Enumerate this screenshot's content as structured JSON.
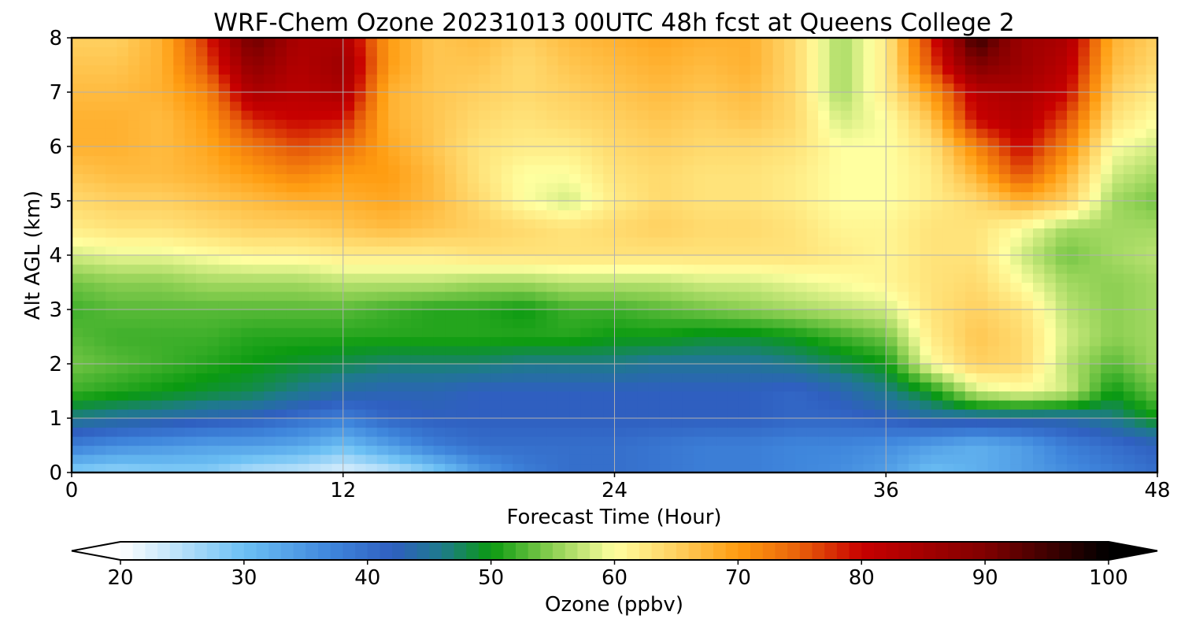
{
  "chart_data": {
    "type": "heatmap",
    "title": "WRF-Chem Ozone  20231013 00UTC 48h fcst at Queens College 2",
    "xlabel": "Forecast Time (Hour)",
    "ylabel": "Alt AGL (km)",
    "xlim": [
      0,
      48
    ],
    "ylim": [
      0,
      8
    ],
    "x_ticks": [
      0,
      12,
      24,
      36,
      48
    ],
    "y_ticks": [
      0,
      1,
      2,
      3,
      4,
      5,
      6,
      7,
      8
    ],
    "grid": true,
    "x": [
      0,
      2,
      4,
      6,
      8,
      10,
      12,
      14,
      16,
      18,
      20,
      22,
      24,
      26,
      28,
      30,
      32,
      34,
      36,
      38,
      40,
      42,
      44,
      46,
      48
    ],
    "y": [
      0,
      0.5,
      1,
      1.5,
      2,
      2.5,
      3,
      3.5,
      4,
      4.5,
      5,
      5.5,
      6,
      6.5,
      7,
      7.5,
      8
    ],
    "z": [
      [
        28,
        27,
        28,
        28,
        25,
        24,
        22,
        24,
        28,
        34,
        38,
        40,
        40,
        39,
        38,
        38,
        37,
        36,
        34,
        30,
        32,
        34,
        36,
        38,
        40
      ],
      [
        38,
        36,
        35,
        34,
        34,
        33,
        30,
        34,
        38,
        40,
        40,
        40,
        40,
        39,
        38,
        38,
        37,
        37,
        36,
        34,
        32,
        34,
        38,
        40,
        42
      ],
      [
        46,
        45,
        44,
        43,
        42,
        40,
        38,
        41,
        42,
        42,
        42,
        42,
        42,
        42,
        42,
        42,
        41,
        41,
        42,
        44,
        44,
        44,
        44,
        46,
        50
      ],
      [
        52,
        51,
        50,
        49,
        48,
        46,
        44,
        43,
        43,
        42,
        42,
        42,
        42,
        42,
        42,
        42,
        41,
        43,
        46,
        50,
        58,
        60,
        58,
        50,
        54
      ],
      [
        54,
        53,
        52,
        51,
        50,
        49,
        48,
        47,
        47,
        47,
        46,
        46,
        46,
        45,
        45,
        45,
        46,
        48,
        50,
        60,
        65,
        64,
        57,
        53,
        56
      ],
      [
        53,
        52,
        52,
        52,
        51,
        51,
        51,
        51,
        51,
        51,
        51,
        51,
        50,
        50,
        49,
        49,
        50,
        52,
        54,
        62,
        66,
        64,
        58,
        55,
        56
      ],
      [
        52,
        53,
        53,
        53,
        53,
        53,
        53,
        52,
        51,
        51,
        50,
        52,
        52,
        53,
        54,
        55,
        56,
        57,
        58,
        63,
        65,
        63,
        57,
        55,
        56
      ],
      [
        54,
        55,
        55,
        56,
        56,
        56,
        57,
        57,
        57,
        56,
        56,
        57,
        57,
        57,
        58,
        58,
        59,
        60,
        61,
        63,
        64,
        60,
        56,
        55,
        56
      ],
      [
        58,
        59,
        59,
        60,
        61,
        61,
        62,
        62,
        62,
        63,
        63,
        63,
        63,
        63,
        63,
        63,
        63,
        62,
        61,
        63,
        63,
        58,
        54,
        56,
        57
      ],
      [
        62,
        63,
        63,
        64,
        65,
        65,
        66,
        67,
        66,
        65,
        64,
        63,
        64,
        65,
        64,
        64,
        63,
        61,
        61,
        63,
        63,
        60,
        56,
        56,
        56
      ],
      [
        64,
        65,
        65,
        66,
        67,
        68,
        68,
        69,
        67,
        64,
        60,
        58,
        62,
        64,
        63,
        63,
        62,
        60,
        60,
        62,
        64,
        68,
        65,
        56,
        54
      ],
      [
        66,
        67,
        67,
        68,
        70,
        72,
        70,
        70,
        67,
        63,
        60,
        60,
        63,
        64,
        63,
        63,
        62,
        60,
        60,
        62,
        68,
        76,
        68,
        58,
        56
      ],
      [
        68,
        68,
        67,
        69,
        73,
        76,
        74,
        69,
        66,
        63,
        62,
        62,
        64,
        65,
        64,
        64,
        63,
        60,
        60,
        63,
        72,
        80,
        72,
        60,
        58
      ],
      [
        68,
        68,
        67,
        70,
        78,
        80,
        79,
        68,
        66,
        64,
        63,
        64,
        65,
        66,
        65,
        66,
        64,
        58,
        60,
        66,
        80,
        83,
        76,
        63,
        60
      ],
      [
        67,
        67,
        68,
        72,
        84,
        82,
        84,
        68,
        66,
        65,
        64,
        65,
        66,
        67,
        66,
        67,
        64,
        56,
        62,
        70,
        82,
        84,
        80,
        65,
        62
      ],
      [
        66,
        66,
        68,
        76,
        88,
        83,
        86,
        70,
        66,
        66,
        64,
        66,
        67,
        68,
        67,
        68,
        64,
        56,
        62,
        76,
        90,
        86,
        82,
        67,
        64
      ],
      [
        65,
        65,
        68,
        78,
        92,
        84,
        84,
        70,
        66,
        67,
        65,
        67,
        68,
        69,
        68,
        68,
        64,
        56,
        62,
        78,
        96,
        86,
        84,
        68,
        65
      ]
    ],
    "colorbar": {
      "label": "Ozone  (ppbv)",
      "range": [
        20,
        100
      ],
      "ticks": [
        20,
        30,
        40,
        50,
        60,
        70,
        80,
        90,
        100
      ],
      "extend": "both"
    },
    "colormap_stops": [
      [
        20,
        "#ffffff"
      ],
      [
        30,
        "#6cc0f4"
      ],
      [
        37,
        "#3f86dc"
      ],
      [
        42,
        "#2f5fc0"
      ],
      [
        46,
        "#1e7a8c"
      ],
      [
        50,
        "#0a9a10"
      ],
      [
        55,
        "#8ccf52"
      ],
      [
        60,
        "#ffffa0"
      ],
      [
        65,
        "#ffd060"
      ],
      [
        70,
        "#ff9c10"
      ],
      [
        75,
        "#e8600a"
      ],
      [
        80,
        "#c80000"
      ],
      [
        90,
        "#800000"
      ],
      [
        100,
        "#000000"
      ]
    ]
  }
}
